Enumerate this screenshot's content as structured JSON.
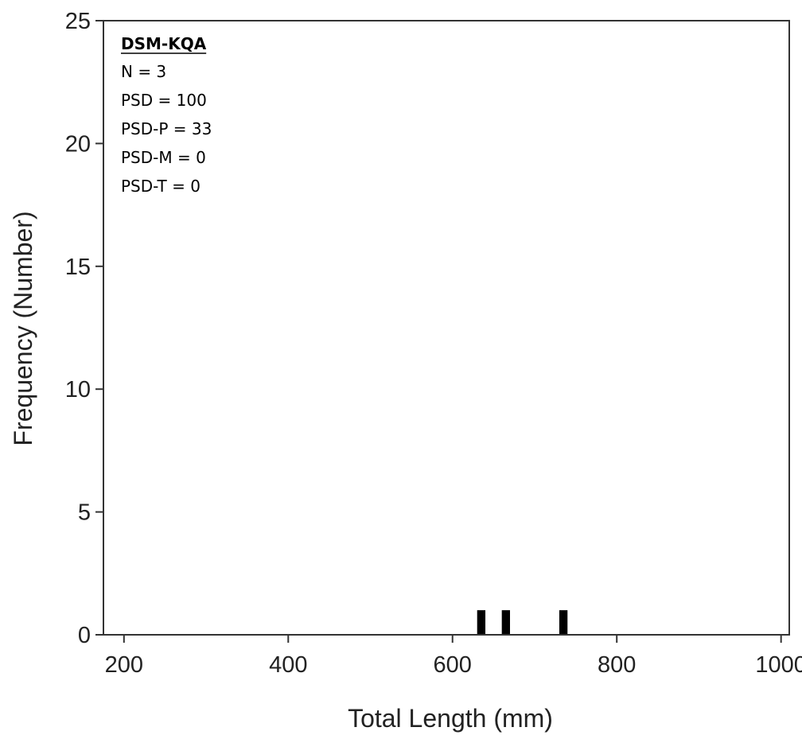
{
  "chart_data": {
    "type": "bar",
    "xlabel": "Total Length (mm)",
    "ylabel": "Frequency (Number)",
    "xlim": [
      175,
      1010
    ],
    "ylim": [
      0,
      25
    ],
    "x_ticks": [
      200,
      400,
      600,
      800,
      1000
    ],
    "y_ticks": [
      0,
      5,
      10,
      15,
      20,
      25
    ],
    "bin_width": 10,
    "bars": [
      {
        "x": 635,
        "value": 1
      },
      {
        "x": 665,
        "value": 1
      },
      {
        "x": 735,
        "value": 1
      }
    ],
    "bar_color": "#000000",
    "grid": false,
    "legend_placement": "top-left",
    "annotation": {
      "title": "DSM-KQA",
      "lines": [
        "N = 3",
        "PSD = 100",
        "PSD-P = 33",
        "PSD-M = 0",
        "PSD-T = 0"
      ]
    }
  }
}
